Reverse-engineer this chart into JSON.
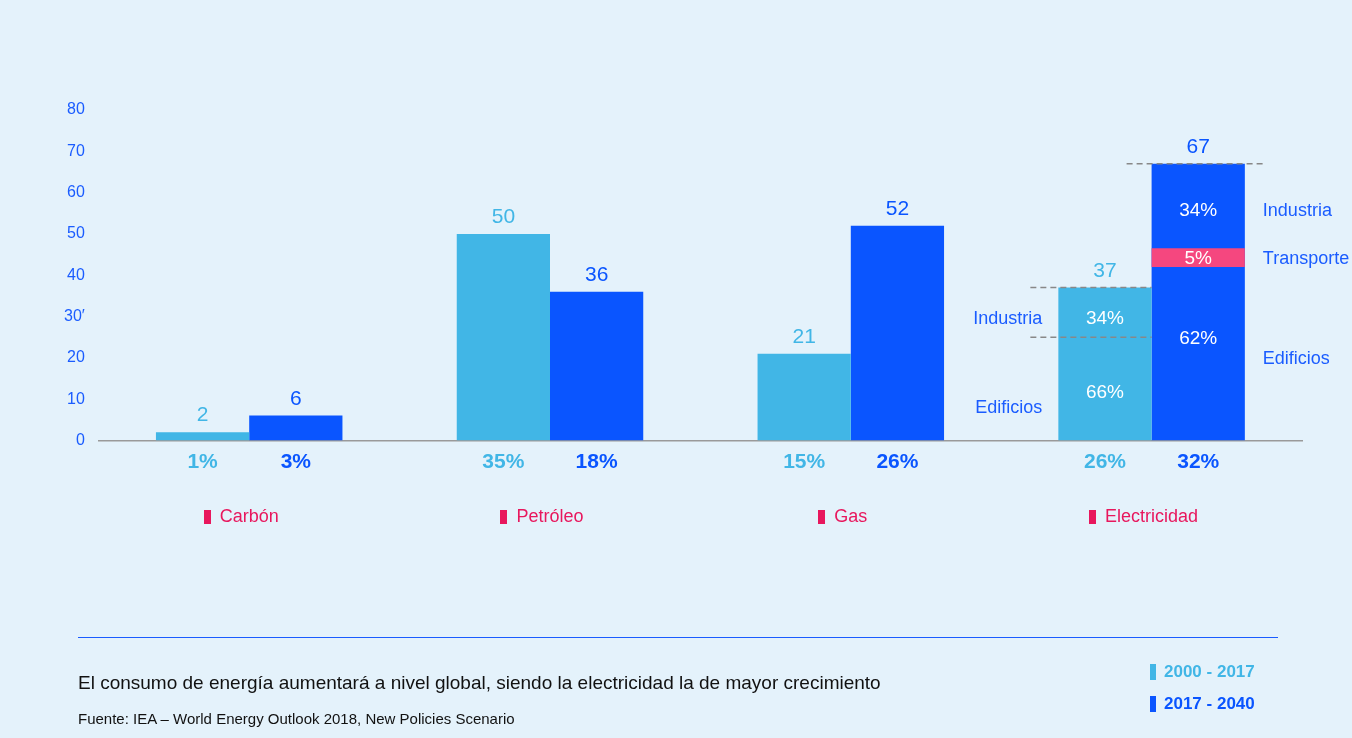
{
  "chart_data": {
    "type": "bar",
    "title": "El consumo de energía aumentará a nivel global, siendo la electricidad la de mayor crecimiento",
    "categories": [
      "Carbón",
      "Petróleo",
      "Gas",
      "Electricidad"
    ],
    "series": [
      {
        "name": "2000 - 2017",
        "color": "#41b6e6",
        "values": [
          2,
          50,
          21,
          37
        ],
        "value_labels": [
          "2",
          "50",
          "21",
          "37"
        ]
      },
      {
        "name": "2017 - 2040",
        "color": "#0a55ff",
        "values": [
          6,
          36,
          52,
          67
        ],
        "value_labels": [
          "6",
          "36",
          "52",
          "67"
        ]
      },
      {
        "type": "bar",
        "color": "#f5477f",
        "base": [
          null,
          null,
          null,
          42
        ],
        "values": [
          null,
          null,
          null,
          4.5
        ]
      }
    ],
    "ylim": [
      0,
      80
    ],
    "yticks": [
      0,
      10,
      20,
      {
        "value": 30,
        "label": "30′"
      },
      40,
      50,
      60,
      70,
      80
    ],
    "grid": false,
    "legend": "bottom right",
    "ref_lines": [
      {
        "axis": "y",
        "value": 67,
        "color": "#888888",
        "line_style": "dashed"
      },
      {
        "axis": "y",
        "value": 37,
        "color": "#888888",
        "line_style": "dashed"
      },
      {
        "axis": "y",
        "value": 25,
        "color": "#888888",
        "line_style": "dashed"
      }
    ],
    "annotations": [
      "1%",
      "3%",
      "35%",
      "18%",
      "15%",
      "26%",
      "26%",
      "32%",
      {
        "text": "66%",
        "x": "Electricidad",
        "y": 11.5
      },
      {
        "text": "34%",
        "x": "Electricidad",
        "y": 29.5
      },
      {
        "text": "34%",
        "x": "Electricidad",
        "y": 55.5
      },
      {
        "text": "5%",
        "x": "Electricidad",
        "y": 44
      },
      {
        "text": "62%",
        "x": "Electricidad",
        "y": 24.5
      },
      "Edificios",
      "Industria",
      "Industria",
      "Transporte",
      "Edificios",
      "Fuente: IEA – World Energy Outlook 2018, New Policies Scenario"
    ]
  }
}
